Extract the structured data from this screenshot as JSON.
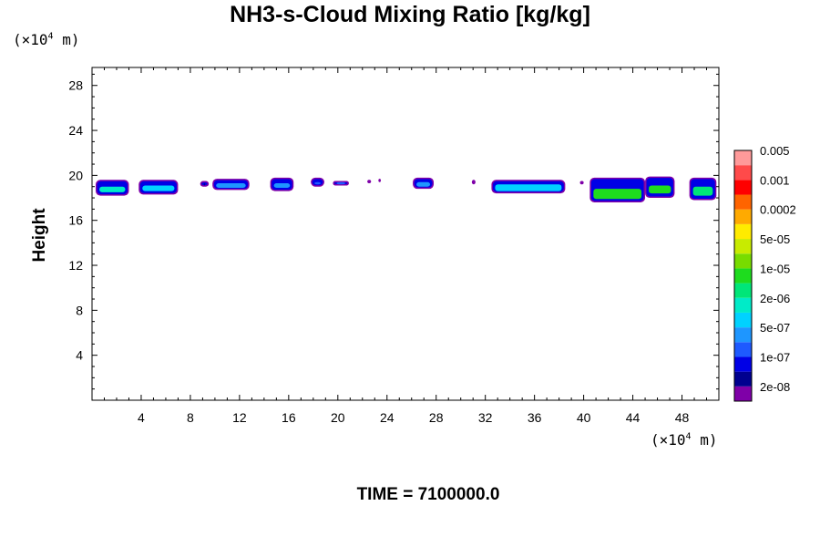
{
  "chart_data": {
    "type": "heatmap",
    "title": "NH3-s-Cloud Mixing Ratio [kg/kg]",
    "ylabel": "Height",
    "xlabel": "",
    "x_unit_prefix": "(×10",
    "x_unit_exp": "4",
    "x_unit_suffix": " m)",
    "y_unit_prefix": "(×10",
    "y_unit_exp": "4",
    "y_unit_suffix": " m)",
    "xlim": [
      0,
      51
    ],
    "ylim": [
      0,
      29.6
    ],
    "x_ticks": [
      "4",
      "8",
      "12",
      "16",
      "20",
      "24",
      "28",
      "32",
      "36",
      "40",
      "44",
      "48"
    ],
    "x_tick_values": [
      4,
      8,
      12,
      16,
      20,
      24,
      28,
      32,
      36,
      40,
      44,
      48
    ],
    "y_ticks": [
      "4",
      "8",
      "12",
      "16",
      "20",
      "24",
      "28"
    ],
    "y_tick_values": [
      4,
      8,
      12,
      16,
      20,
      24,
      28
    ],
    "colorbar": {
      "colors": [
        "#7f00a8",
        "#00008f",
        "#0000e6",
        "#1e5aff",
        "#1e96ff",
        "#00d2ff",
        "#00ebc8",
        "#00e678",
        "#1edc1e",
        "#78dc00",
        "#c8eb00",
        "#ffeb00",
        "#ffaa00",
        "#ff6400",
        "#ff0000",
        "#ff4a4a",
        "#ff9a9a"
      ],
      "labels": [
        "2e-08",
        "1e-07",
        "5e-07",
        "2e-06",
        "1e-05",
        "5e-05",
        "0.0002",
        "0.001",
        "0.005"
      ]
    },
    "cloud_patches": [
      {
        "x": [
          0.3,
          3.0
        ],
        "y": [
          18.2,
          19.6
        ],
        "core": "#00ebc8",
        "core_y": [
          18.5,
          19.0
        ]
      },
      {
        "x": [
          3.8,
          7.0
        ],
        "y": [
          18.3,
          19.6
        ],
        "core": "#00d2ff",
        "core_y": [
          18.6,
          19.1
        ]
      },
      {
        "x": [
          8.8,
          9.5
        ],
        "y": [
          19.0,
          19.5
        ],
        "core": "#00008f",
        "core_y": [
          19.1,
          19.3
        ]
      },
      {
        "x": [
          9.8,
          12.8
        ],
        "y": [
          18.7,
          19.7
        ],
        "core": "#1e96ff",
        "core_y": [
          18.9,
          19.3
        ]
      },
      {
        "x": [
          14.5,
          16.4
        ],
        "y": [
          18.6,
          19.8
        ],
        "core": "#1e96ff",
        "core_y": [
          18.9,
          19.3
        ]
      },
      {
        "x": [
          17.8,
          18.9
        ],
        "y": [
          19.0,
          19.8
        ],
        "core": "#1e5aff",
        "core_y": [
          19.2,
          19.4
        ]
      },
      {
        "x": [
          19.6,
          20.9
        ],
        "y": [
          19.1,
          19.5
        ],
        "core": "#1e5aff",
        "core_y": [
          19.2,
          19.4
        ]
      },
      {
        "x": [
          22.4,
          22.7
        ],
        "y": [
          19.3,
          19.6
        ],
        "core": "#7f00a8",
        "core_y": [
          19.4,
          19.5
        ]
      },
      {
        "x": [
          23.3,
          23.5
        ],
        "y": [
          19.4,
          19.7
        ],
        "core": "#7f00a8",
        "core_y": [
          19.5,
          19.6
        ]
      },
      {
        "x": [
          26.1,
          27.8
        ],
        "y": [
          18.8,
          19.8
        ],
        "core": "#1e96ff",
        "core_y": [
          19.0,
          19.4
        ]
      },
      {
        "x": [
          30.9,
          31.2
        ],
        "y": [
          19.2,
          19.6
        ],
        "core": "#7f00a8",
        "core_y": [
          19.3,
          19.5
        ]
      },
      {
        "x": [
          32.5,
          38.5
        ],
        "y": [
          18.4,
          19.6
        ],
        "core": "#00d2ff",
        "core_y": [
          18.6,
          19.2
        ]
      },
      {
        "x": [
          39.7,
          40.0
        ],
        "y": [
          19.2,
          19.5
        ],
        "core": "#7f00a8",
        "core_y": [
          19.3,
          19.4
        ]
      },
      {
        "x": [
          40.5,
          45.0
        ],
        "y": [
          17.6,
          19.8
        ],
        "core": "#1edc1e",
        "core_y": [
          17.9,
          18.8
        ]
      },
      {
        "x": [
          45.0,
          47.4
        ],
        "y": [
          18.0,
          19.9
        ],
        "core": "#1edc1e",
        "core_y": [
          18.4,
          19.1
        ]
      },
      {
        "x": [
          48.6,
          50.8
        ],
        "y": [
          17.8,
          19.8
        ],
        "core": "#00e678",
        "core_y": [
          18.2,
          19.0
        ]
      }
    ]
  },
  "time_label": "TIME = 7100000.0"
}
